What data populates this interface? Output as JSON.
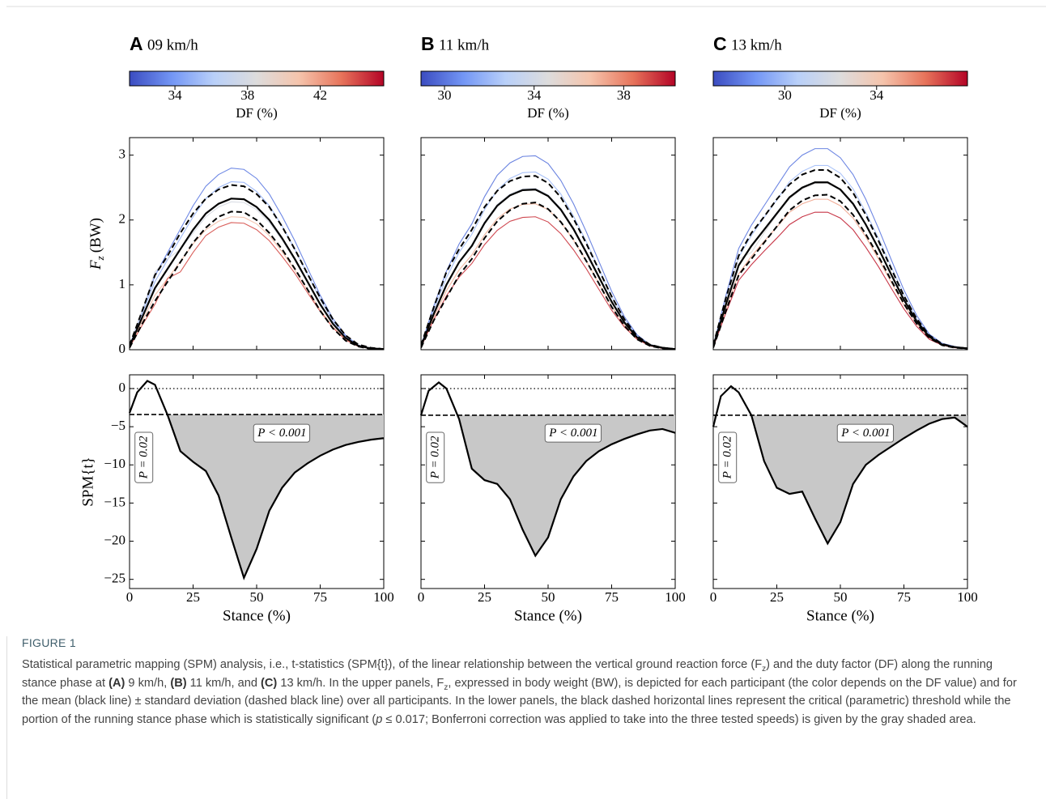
{
  "chart_data": [
    {
      "type": "line",
      "label": "A",
      "title": "09 km/h",
      "colorbar": {
        "label": "DF (%)",
        "lim": [
          31.5,
          45.5
        ],
        "ticks": [
          34,
          38,
          42
        ],
        "colormap": [
          "#3b4cc0",
          "#7396f5",
          "#b9d0f9",
          "#dddcdc",
          "#f5c4ac",
          "#e7745b",
          "#b40426"
        ]
      },
      "xlim": [
        0,
        100
      ],
      "xticks": [
        0,
        25,
        50,
        75,
        100
      ],
      "xlabel": "Stance (%)",
      "force": {
        "ylabel": {
          "symbol": "F",
          "subscript": "z",
          "unit": "(BW)"
        },
        "tick_labels": true,
        "ylim": [
          0,
          3.27
        ],
        "yticks": [
          0,
          1,
          2,
          3
        ],
        "x": [
          0,
          5,
          10,
          15,
          20,
          25,
          30,
          35,
          40,
          45,
          50,
          55,
          60,
          65,
          70,
          75,
          80,
          85,
          90,
          95,
          100
        ],
        "participants": [
          {
            "df": 33,
            "values": [
              0.06,
              0.6,
              1.14,
              1.5,
              1.86,
              2.22,
              2.52,
              2.7,
              2.8,
              2.78,
              2.64,
              2.4,
              2.06,
              1.68,
              1.26,
              0.84,
              0.48,
              0.22,
              0.07,
              0.02,
              0.01
            ]
          },
          {
            "df": 35,
            "values": [
              0.06,
              0.56,
              1.05,
              1.39,
              1.72,
              2.05,
              2.33,
              2.5,
              2.59,
              2.58,
              2.44,
              2.22,
              1.91,
              1.55,
              1.17,
              0.78,
              0.44,
              0.2,
              0.07,
              0.02,
              0.01
            ]
          },
          {
            "df": 38,
            "values": [
              0.04,
              0.6,
              1.2,
              1.4,
              1.55,
              1.8,
              2.05,
              2.2,
              2.28,
              2.27,
              2.16,
              1.96,
              1.69,
              1.38,
              1.03,
              0.69,
              0.39,
              0.18,
              0.06,
              0.02,
              0.01
            ]
          },
          {
            "df": 41,
            "values": [
              0.04,
              0.44,
              0.84,
              1.1,
              1.36,
              1.63,
              1.85,
              1.98,
              2.05,
              2.04,
              1.94,
              1.76,
              1.51,
              1.23,
              0.92,
              0.62,
              0.35,
              0.16,
              0.05,
              0.02,
              0.01
            ]
          },
          {
            "df": 44,
            "values": [
              0.04,
              0.38,
              0.7,
              1.1,
              1.2,
              1.5,
              1.76,
              1.89,
              1.96,
              1.95,
              1.85,
              1.68,
              1.44,
              1.18,
              0.88,
              0.59,
              0.34,
              0.15,
              0.05,
              0.02,
              0.01
            ]
          }
        ],
        "mean": [
          0.05,
          0.5,
          0.95,
          1.25,
          1.55,
          1.85,
          2.1,
          2.25,
          2.33,
          2.32,
          2.2,
          2.0,
          1.72,
          1.4,
          1.05,
          0.7,
          0.4,
          0.18,
          0.06,
          0.02,
          0.01
        ],
        "sd_upper": [
          0.07,
          0.6,
          1.15,
          1.45,
          1.8,
          2.1,
          2.33,
          2.47,
          2.54,
          2.52,
          2.4,
          2.2,
          1.9,
          1.55,
          1.17,
          0.8,
          0.47,
          0.22,
          0.08,
          0.03,
          0.01
        ],
        "sd_lower": [
          0.03,
          0.4,
          0.75,
          1.05,
          1.35,
          1.65,
          1.88,
          2.05,
          2.13,
          2.12,
          2.0,
          1.8,
          1.55,
          1.25,
          0.93,
          0.6,
          0.33,
          0.14,
          0.05,
          0.01,
          0.01
        ]
      },
      "spm": {
        "ylabel": "SPM{t}",
        "tick_labels": true,
        "ylim": [
          -26.2,
          1.8
        ],
        "yticks": [
          0,
          {
            "value": -5,
            "label": "−5"
          },
          {
            "value": -10,
            "label": "−10"
          },
          {
            "value": -15,
            "label": "−15"
          },
          {
            "value": -20,
            "label": "−20"
          },
          {
            "value": -25,
            "label": "−25"
          }
        ],
        "x": [
          0,
          3,
          7,
          10,
          15,
          20,
          25,
          30,
          35,
          40,
          45,
          50,
          55,
          60,
          65,
          70,
          75,
          80,
          85,
          90,
          95,
          100
        ],
        "values": [
          -3.2,
          -0.5,
          1.0,
          0.5,
          -3.5,
          -8.2,
          -9.6,
          -10.8,
          -14,
          -19.5,
          -24.8,
          -21,
          -16,
          -13,
          -11,
          -9.8,
          -8.8,
          -8,
          -7.4,
          -7,
          -6.7,
          -6.5
        ],
        "threshold": -3.4,
        "reference_line": 0,
        "annotations": [
          {
            "text": "P = 0.02"
          },
          {
            "text": "P < 0.001"
          }
        ]
      }
    },
    {
      "type": "line",
      "label": "B",
      "title": "11 km/h",
      "colorbar": {
        "label": "DF (%)",
        "lim": [
          28.95,
          40.3
        ],
        "ticks": [
          30,
          34,
          38
        ],
        "colormap": [
          "#3b4cc0",
          "#7396f5",
          "#b9d0f9",
          "#dddcdc",
          "#f5c4ac",
          "#e7745b",
          "#b40426"
        ]
      },
      "xlim": [
        0,
        100
      ],
      "xticks": [
        0,
        25,
        50,
        75,
        100
      ],
      "xlabel": "Stance (%)",
      "force": {
        "tick_labels": false,
        "ylim": [
          0,
          3.27
        ],
        "yticks": [
          0,
          1,
          2,
          3
        ],
        "x": [
          0,
          5,
          10,
          15,
          20,
          25,
          30,
          35,
          40,
          45,
          50,
          55,
          60,
          65,
          70,
          75,
          80,
          85,
          90,
          95,
          100
        ],
        "participants": [
          {
            "df": 30,
            "values": [
              0.06,
              0.67,
              1.21,
              1.63,
              1.94,
              2.36,
              2.69,
              2.88,
              2.98,
              2.99,
              2.87,
              2.61,
              2.25,
              1.82,
              1.36,
              0.9,
              0.51,
              0.23,
              0.08,
              0.03,
              0.01
            ]
          },
          {
            "df": 32,
            "values": [
              0.06,
              0.61,
              1.11,
              1.5,
              1.78,
              2.16,
              2.46,
              2.64,
              2.73,
              2.74,
              2.63,
              2.4,
              2.06,
              1.67,
              1.24,
              0.82,
              0.47,
              0.21,
              0.08,
              0.03,
              0.01
            ]
          },
          {
            "df": 34,
            "values": [
              0.05,
              0.56,
              1.01,
              1.36,
              1.62,
              1.97,
              2.24,
              2.4,
              2.48,
              2.49,
              2.39,
              2.18,
              1.88,
              1.52,
              1.13,
              0.75,
              0.42,
              0.19,
              0.07,
              0.03,
              0.01
            ]
          },
          {
            "df": 37,
            "values": [
              0.05,
              0.5,
              0.91,
              1.23,
              1.46,
              1.77,
              2.02,
              2.17,
              2.24,
              2.25,
              2.16,
              1.97,
              1.69,
              1.37,
              1.02,
              0.67,
              0.38,
              0.17,
              0.06,
              0.03,
              0.01
            ]
          },
          {
            "df": 39.5,
            "values": [
              0.04,
              0.46,
              0.83,
              1.12,
              1.33,
              1.62,
              1.84,
              1.98,
              2.04,
              2.05,
              1.97,
              1.79,
              1.54,
              1.25,
              0.93,
              0.61,
              0.35,
              0.16,
              0.06,
              0.02,
              0.01
            ]
          }
        ],
        "mean": [
          0.05,
          0.55,
          1.0,
          1.35,
          1.6,
          1.95,
          2.22,
          2.38,
          2.46,
          2.47,
          2.37,
          2.16,
          1.86,
          1.5,
          1.12,
          0.74,
          0.42,
          0.19,
          0.07,
          0.03,
          0.01
        ],
        "sd_upper": [
          0.07,
          0.65,
          1.2,
          1.55,
          1.85,
          2.2,
          2.45,
          2.6,
          2.67,
          2.68,
          2.57,
          2.35,
          2.02,
          1.64,
          1.23,
          0.82,
          0.47,
          0.21,
          0.08,
          0.03,
          0.01
        ],
        "sd_lower": [
          0.03,
          0.45,
          0.8,
          1.15,
          1.4,
          1.72,
          1.98,
          2.15,
          2.25,
          2.27,
          2.17,
          1.97,
          1.7,
          1.37,
          1.02,
          0.66,
          0.37,
          0.16,
          0.06,
          0.02,
          0.01
        ]
      },
      "spm": {
        "tick_labels": false,
        "ylim": [
          -26.2,
          1.8
        ],
        "yticks": [
          0,
          -5,
          -10,
          -15,
          -20,
          -25
        ],
        "x": [
          0,
          3,
          7,
          10,
          15,
          20,
          25,
          30,
          35,
          40,
          45,
          50,
          55,
          60,
          65,
          70,
          75,
          80,
          85,
          90,
          95,
          100
        ],
        "values": [
          -3.5,
          -0.3,
          0.8,
          0,
          -4,
          -10.5,
          -12,
          -12.5,
          -14.5,
          -18.5,
          -21.9,
          -19.5,
          -14.5,
          -11.5,
          -9.5,
          -8.2,
          -7.3,
          -6.6,
          -6,
          -5.5,
          -5.3,
          -5.8
        ],
        "threshold": -3.5,
        "reference_line": 0,
        "annotations": [
          {
            "text": "P = 0.02"
          },
          {
            "text": "P < 0.001"
          }
        ]
      }
    },
    {
      "type": "line",
      "label": "C",
      "title": "13 km/h",
      "colorbar": {
        "label": "DF (%)",
        "lim": [
          26.88,
          37.96
        ],
        "ticks": [
          30,
          34
        ],
        "colormap": [
          "#3b4cc0",
          "#7396f5",
          "#b9d0f9",
          "#dddcdc",
          "#f5c4ac",
          "#e7745b",
          "#b40426"
        ]
      },
      "xlim": [
        0,
        100
      ],
      "xticks": [
        0,
        25,
        50,
        75,
        100
      ],
      "xlabel": "Stance (%)",
      "force": {
        "tick_labels": false,
        "ylim": [
          0,
          3.27
        ],
        "yticks": [
          0,
          1,
          2,
          3
        ],
        "x": [
          0,
          5,
          10,
          15,
          20,
          25,
          30,
          35,
          40,
          45,
          50,
          55,
          60,
          65,
          70,
          75,
          80,
          85,
          90,
          95,
          100
        ],
        "participants": [
          {
            "df": 28,
            "values": [
              0.06,
              0.84,
              1.56,
              1.92,
              2.22,
              2.52,
              2.82,
              3.0,
              3.1,
              3.1,
              2.96,
              2.7,
              2.32,
              1.87,
              1.39,
              0.92,
              0.53,
              0.24,
              0.1,
              0.05,
              0.02
            ]
          },
          {
            "df": 30,
            "values": [
              0.06,
              0.77,
              1.43,
              1.76,
              2.04,
              2.31,
              2.59,
              2.75,
              2.84,
              2.84,
              2.72,
              2.48,
              2.12,
              1.72,
              1.28,
              0.85,
              0.48,
              0.22,
              0.09,
              0.04,
              0.02
            ]
          },
          {
            "df": 32.5,
            "values": [
              0.05,
              0.75,
              1.4,
              1.5,
              1.8,
              2.08,
              2.33,
              2.48,
              2.56,
              2.57,
              2.46,
              2.24,
              1.92,
              1.55,
              1.15,
              0.76,
              0.43,
              0.2,
              0.08,
              0.04,
              0.02
            ]
          },
          {
            "df": 35,
            "values": [
              0.05,
              0.63,
              1.17,
              1.44,
              1.67,
              1.89,
              2.12,
              2.25,
              2.32,
              2.32,
              2.22,
              2.03,
              1.74,
              1.4,
              1.04,
              0.69,
              0.4,
              0.18,
              0.07,
              0.04,
              0.02
            ]
          },
          {
            "df": 37.5,
            "values": [
              0.04,
              0.57,
              1.07,
              1.31,
              1.52,
              1.72,
              1.93,
              2.05,
              2.12,
              2.12,
              2.03,
              1.85,
              1.58,
              1.28,
              0.95,
              0.63,
              0.36,
              0.16,
              0.07,
              0.03,
              0.02
            ]
          }
        ],
        "mean": [
          0.05,
          0.7,
          1.3,
          1.6,
          1.85,
          2.1,
          2.35,
          2.5,
          2.58,
          2.58,
          2.47,
          2.25,
          1.93,
          1.56,
          1.16,
          0.77,
          0.44,
          0.2,
          0.08,
          0.04,
          0.02
        ],
        "sd_upper": [
          0.07,
          0.8,
          1.45,
          1.8,
          2.05,
          2.32,
          2.55,
          2.7,
          2.77,
          2.77,
          2.65,
          2.42,
          2.08,
          1.68,
          1.25,
          0.83,
          0.48,
          0.22,
          0.09,
          0.04,
          0.02
        ],
        "sd_lower": [
          0.03,
          0.6,
          1.15,
          1.4,
          1.65,
          1.9,
          2.15,
          2.3,
          2.38,
          2.39,
          2.29,
          2.08,
          1.78,
          1.44,
          1.07,
          0.71,
          0.4,
          0.18,
          0.07,
          0.03,
          0.02
        ]
      },
      "spm": {
        "tick_labels": false,
        "ylim": [
          -26.2,
          1.8
        ],
        "yticks": [
          0,
          -5,
          -10,
          -15,
          -20,
          -25
        ],
        "x": [
          0,
          3,
          7,
          10,
          15,
          20,
          25,
          30,
          35,
          40,
          45,
          50,
          55,
          60,
          65,
          70,
          75,
          80,
          85,
          90,
          95,
          100
        ],
        "values": [
          -5,
          -1,
          0.3,
          -0.5,
          -3.5,
          -9.5,
          -13,
          -13.8,
          -13.5,
          -17,
          -20.3,
          -17.5,
          -12.5,
          -10,
          -8.7,
          -7.6,
          -6.5,
          -5.5,
          -4.6,
          -4,
          -3.8,
          -5.0
        ],
        "threshold": -3.5,
        "reference_line": 0,
        "annotations": [
          {
            "text": "P = 0.02"
          },
          {
            "text": "P < 0.001"
          }
        ]
      }
    }
  ],
  "caption": {
    "label": "FIGURE 1",
    "segments": [
      "Statistical parametric mapping (SPM) analysis, i.e., t-statistics (SPM{t}), of the linear relationship between the vertical ground reaction force (F",
      {
        "text": "z",
        "style": "sub"
      },
      ") and the duty factor (DF) along the running stance phase at ",
      {
        "text": "(A)",
        "style": "bold"
      },
      " 9 km/h, ",
      {
        "text": "(B)",
        "style": "bold"
      },
      " 11 km/h, and ",
      {
        "text": "(C)",
        "style": "bold"
      },
      " 13 km/h. In the upper panels, F",
      {
        "text": "z",
        "style": "sub"
      },
      ", expressed in body weight (BW), is depicted for each participant (the color depends on the DF value) and for the mean (black line) ± standard deviation (dashed black line) over all participants. In the lower panels, the black dashed horizontal lines represent the critical (parametric) threshold while the portion of the running stance phase which is statistically significant (",
      {
        "text": "p",
        "style": "italic"
      },
      " ≤ 0.017; Bonferroni correction was applied to take into the three tested speeds) is given by the gray shaded area."
    ]
  }
}
